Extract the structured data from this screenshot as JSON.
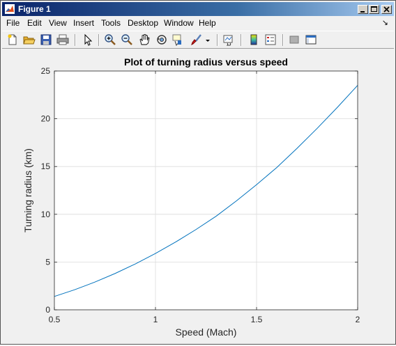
{
  "window": {
    "title": "Figure 1"
  },
  "menu": [
    "File",
    "Edit",
    "View",
    "Insert",
    "Tools",
    "Desktop",
    "Window",
    "Help"
  ],
  "menu_arrow": "↘",
  "toolbar": {
    "buttons": [
      "new-figure-icon",
      "open-file-icon",
      "save-icon",
      "print-icon",
      "edit-plot-arrow-icon",
      "zoom-in-icon",
      "zoom-out-icon",
      "pan-hand-icon",
      "rotate-3d-icon",
      "data-cursor-icon",
      "brush-icon",
      "brush-dropdown-icon",
      "link-plot-icon",
      "colorbar-icon",
      "legend-icon",
      "hide-plot-tools-icon",
      "show-plot-tools-icon"
    ]
  },
  "chart_data": {
    "type": "line",
    "title": "Plot of turning radius versus speed",
    "xlabel": "Speed (Mach)",
    "ylabel": "Turning radius (km)",
    "xlim": [
      0.5,
      2
    ],
    "ylim": [
      0,
      25
    ],
    "xticks": [
      0.5,
      1,
      1.5,
      2
    ],
    "xtick_labels": [
      "0.5",
      "1",
      "1.5",
      "2"
    ],
    "yticks": [
      0,
      5,
      10,
      15,
      20,
      25
    ],
    "ytick_labels": [
      "0",
      "5",
      "10",
      "15",
      "20",
      "25"
    ],
    "grid": true,
    "series": [
      {
        "color": "#0072bd",
        "x": [
          0.5,
          0.6,
          0.7,
          0.8,
          0.9,
          1.0,
          1.1,
          1.2,
          1.3,
          1.4,
          1.5,
          1.6,
          1.7,
          1.8,
          1.9,
          2.0
        ],
        "y": [
          1.4,
          2.1,
          2.9,
          3.8,
          4.8,
          5.9,
          7.1,
          8.4,
          9.8,
          11.4,
          13.1,
          14.9,
          16.9,
          19.0,
          21.2,
          23.5
        ]
      }
    ]
  }
}
